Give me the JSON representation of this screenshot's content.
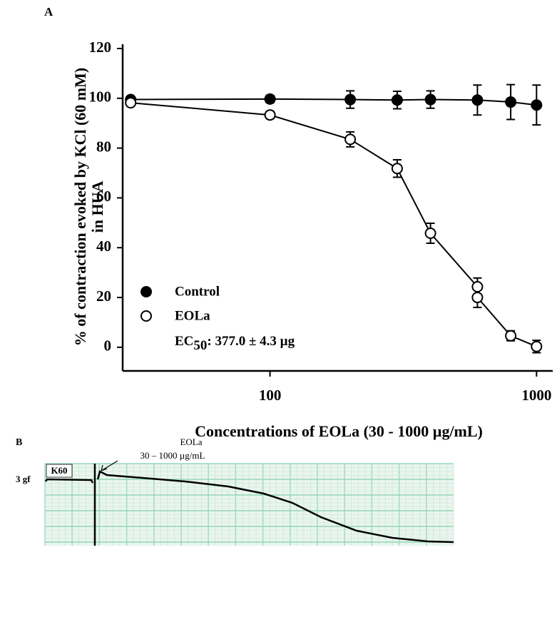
{
  "chart_data": {
    "type": "line",
    "panel_label": "A",
    "ylabel": [
      "% of contraction evoked by KCl (60 mM)",
      "in HUA"
    ],
    "xlabel": "Concentrations of EOLa (30 - 1000 µg/mL)",
    "log_x": true,
    "xlim": [
      28,
      1150
    ],
    "xticks": [
      100,
      1000
    ],
    "ylim": [
      -9.5,
      120
    ],
    "yticks": [
      0,
      20,
      40,
      60,
      80,
      100,
      120
    ],
    "series": [
      {
        "name": "Control",
        "color": "#000000",
        "marker": "filled",
        "x": [
          30,
          100,
          200,
          300,
          400,
          600,
          800,
          1000
        ],
        "values": [
          99.5,
          99.7,
          99.5,
          99.3,
          99.5,
          99.3,
          98.5,
          97.3
        ],
        "errors": [
          0.5,
          1.5,
          3.5,
          3.5,
          3.5,
          6,
          7,
          8
        ]
      },
      {
        "name": "EOLa",
        "color": "#000000",
        "marker": "open",
        "x": [
          30,
          100,
          200,
          300,
          400,
          600,
          600,
          800,
          1000
        ],
        "values": [
          98.2,
          93.3,
          83.5,
          71.8,
          45.8,
          24.3,
          20,
          4.6,
          0.3
        ],
        "errors": [
          1,
          1.5,
          3,
          3.5,
          4,
          3.5,
          4,
          2,
          2.5
        ]
      }
    ],
    "annotation": {
      "text": "EC",
      "subscript": "50",
      "rest": ": 377.0 ± 4.3 µg"
    }
  },
  "panel_b": {
    "label": "B",
    "drug": "EOLa",
    "range": "30 – 1000 µg/mL",
    "marker": "K60",
    "scale": "3 gf"
  }
}
